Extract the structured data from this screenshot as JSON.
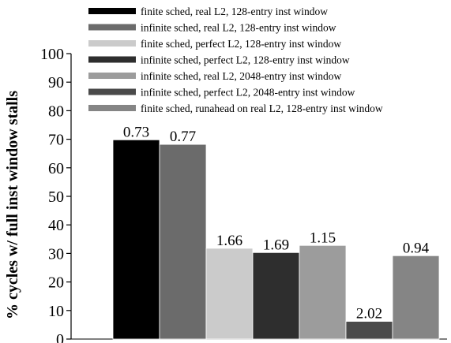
{
  "chart_data": {
    "type": "bar",
    "title": "",
    "xlabel": "",
    "ylabel": "% cycles w/ full inst window stalls",
    "ylim": [
      0,
      100
    ],
    "yticks": [
      0,
      10,
      20,
      30,
      40,
      50,
      60,
      70,
      80,
      90,
      100
    ],
    "grid": false,
    "legend_position": "top",
    "series": [
      {
        "name": "finite sched, real L2, 128-entry inst window",
        "value": 69.8,
        "label": "0.73",
        "color": "#000000"
      },
      {
        "name": "infinite sched, real L2, 128-entry inst window",
        "value": 68.2,
        "label": "0.77",
        "color": "#6b6b6b"
      },
      {
        "name": "finite sched, perfect L2, 128-entry inst window",
        "value": 31.8,
        "label": "1.66",
        "color": "#cbcbcb"
      },
      {
        "name": "infinite sched, perfect L2, 128-entry inst window",
        "value": 30.3,
        "label": "1.69",
        "color": "#2e2e2e"
      },
      {
        "name": "infinite sched, real L2, 2048-entry inst window",
        "value": 32.8,
        "label": "1.15",
        "color": "#9c9c9c"
      },
      {
        "name": "infinite sched, perfect L2, 2048-entry inst window",
        "value": 6.2,
        "label": "2.02",
        "color": "#4a4a4a"
      },
      {
        "name": "finite sched, runahead on real L2, 128-entry inst window",
        "value": 29.2,
        "label": "0.94",
        "color": "#858585"
      }
    ]
  }
}
